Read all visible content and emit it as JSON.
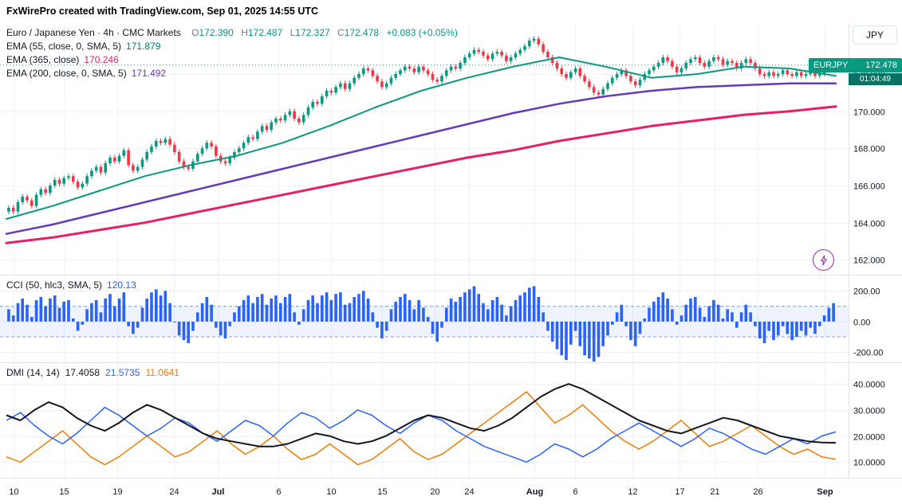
{
  "header": {
    "title": "FxWirePro created with TradingView.com, Sep 01, 2025 14:55 UTC"
  },
  "toolbar": {
    "currency_button": "JPY"
  },
  "main_panel": {
    "legend_title": "Euro / Japanese Yen · 4h · CMC Markets",
    "ohlc": {
      "o_label": "O",
      "o": "172.390",
      "h_label": "H",
      "h": "172.487",
      "l_label": "L",
      "l": "172.327",
      "c_label": "C",
      "c": "172.478",
      "change": "+0.083 (+0.05%)"
    },
    "indicators": [
      {
        "label": "EMA (55, close, 0, SMA, 5)",
        "value": "171.879",
        "color": "#089981"
      },
      {
        "label": "EMA (365, close)",
        "value": "170.246",
        "color": "#e91e63"
      },
      {
        "label": "EMA (200, close, 0, SMA, 5)",
        "value": "171.492",
        "color": "#673ab7"
      }
    ],
    "price_tag": {
      "symbol": "EURJPY",
      "price": "172.478",
      "countdown": "01:04:49",
      "color": "#089981",
      "countdown_color": "#0a7265"
    }
  },
  "cci_panel": {
    "legend": "CCI (50, hlc3, SMA, 5)",
    "value": "120.13",
    "color": "#2962ff"
  },
  "dmi_panel": {
    "legend": "DMI (14, 14)",
    "values": [
      {
        "v": "17.4058",
        "color": "#131722"
      },
      {
        "v": "21.5735",
        "color": "#2962ff"
      },
      {
        "v": "11.0641",
        "color": "#f57c00"
      }
    ]
  },
  "chart_data": {
    "type": "candlestick",
    "title": "Euro / Japanese Yen · 4h · CMC Markets",
    "panels": [
      "price",
      "cci",
      "dmi"
    ],
    "price": {
      "unit": "JPY",
      "current": 172.478,
      "range": [
        161.2,
        174.7
      ],
      "grid": [
        162,
        164,
        166,
        168,
        170,
        172
      ],
      "grid_labels": [
        "162.000",
        "164.000",
        "166.000",
        "168.000",
        "170.000",
        "172.000"
      ],
      "up_color": "#089981",
      "down_color": "#f23645",
      "wick": 0.14,
      "first_open": 164.6,
      "closes": [
        164.8,
        164.6,
        165.1,
        165.4,
        165.2,
        164.9,
        165.5,
        165.8,
        165.6,
        166.0,
        166.3,
        166.1,
        166.4,
        166.5,
        166.2,
        165.9,
        166.1,
        166.5,
        166.8,
        167.0,
        166.7,
        167.2,
        167.5,
        167.3,
        167.6,
        167.9,
        167.1,
        166.8,
        167.0,
        167.4,
        167.8,
        168.1,
        168.4,
        168.3,
        168.5,
        168.2,
        167.8,
        167.3,
        167.0,
        166.9,
        167.3,
        167.7,
        168.0,
        168.3,
        168.1,
        167.6,
        167.3,
        167.2,
        167.5,
        167.8,
        168.0,
        168.3,
        168.6,
        168.5,
        168.9,
        169.2,
        169.0,
        169.4,
        169.6,
        169.5,
        169.8,
        170.0,
        169.6,
        169.4,
        169.8,
        170.2,
        170.5,
        170.4,
        170.8,
        171.1,
        171.0,
        171.3,
        171.5,
        171.2,
        171.5,
        171.8,
        172.0,
        172.3,
        172.2,
        171.9,
        171.6,
        171.3,
        171.5,
        171.8,
        172.0,
        172.2,
        172.4,
        172.3,
        172.1,
        172.4,
        172.2,
        172.0,
        171.7,
        171.6,
        171.9,
        172.2,
        172.4,
        172.3,
        172.6,
        172.9,
        173.1,
        173.3,
        173.2,
        173.0,
        172.8,
        173.1,
        173.2,
        173.0,
        172.7,
        172.9,
        173.1,
        173.3,
        173.5,
        173.8,
        173.9,
        173.6,
        173.2,
        172.9,
        172.6,
        172.3,
        172.0,
        171.8,
        172.1,
        172.3,
        171.9,
        171.6,
        171.3,
        171.0,
        170.9,
        171.2,
        171.5,
        171.8,
        172.0,
        172.2,
        171.9,
        171.6,
        171.4,
        171.7,
        172.0,
        172.2,
        172.4,
        172.6,
        172.9,
        172.7,
        172.4,
        172.1,
        172.3,
        172.6,
        172.8,
        172.9,
        172.6,
        172.4,
        172.7,
        172.9,
        172.8,
        172.5,
        172.7,
        172.6,
        172.3,
        172.6,
        172.8,
        172.6,
        172.3,
        172.0,
        171.9,
        172.1,
        171.9,
        172.0,
        172.2,
        172.0,
        171.9,
        172.1,
        171.9,
        172.0,
        172.1,
        171.9,
        172.0,
        172.2,
        172.3,
        172.478
      ]
    },
    "overlays": {
      "ema55": {
        "color": "#089981",
        "points": [
          164.2,
          164.9,
          165.7,
          166.5,
          167.1,
          167.6,
          168.3,
          169.2,
          170.2,
          171.1,
          171.8,
          172.4,
          172.9,
          172.4,
          171.8,
          172.0,
          172.4,
          172.3,
          171.9
        ]
      },
      "ema200": {
        "color": "#673ab7",
        "points": [
          163.4,
          163.9,
          164.5,
          165.1,
          165.7,
          166.3,
          166.9,
          167.5,
          168.1,
          168.7,
          169.3,
          169.9,
          170.4,
          170.8,
          171.1,
          171.3,
          171.4,
          171.5,
          171.5
        ]
      },
      "ema365": {
        "color": "#e91e63",
        "points": [
          162.9,
          163.2,
          163.6,
          164.0,
          164.5,
          165.0,
          165.5,
          166.0,
          166.5,
          167.0,
          167.5,
          167.9,
          168.4,
          168.8,
          169.2,
          169.5,
          169.8,
          170.0,
          170.25
        ]
      }
    },
    "cci": {
      "color": "#2962ff",
      "range": [
        -265,
        300
      ],
      "band": [
        100,
        -100
      ],
      "grid": [
        200,
        0,
        -200
      ],
      "grid_labels": [
        "200.00",
        "0.00",
        "-200.00"
      ],
      "values": [
        80,
        40,
        120,
        150,
        110,
        30,
        140,
        160,
        100,
        150,
        170,
        90,
        130,
        140,
        20,
        -60,
        -20,
        80,
        120,
        140,
        60,
        150,
        180,
        100,
        150,
        190,
        -30,
        -80,
        -40,
        90,
        150,
        190,
        210,
        170,
        200,
        120,
        0,
        -90,
        -120,
        -140,
        -60,
        60,
        120,
        160,
        110,
        -40,
        -90,
        -110,
        -30,
        60,
        100,
        140,
        170,
        120,
        160,
        180,
        110,
        150,
        170,
        120,
        160,
        180,
        60,
        -20,
        80,
        140,
        170,
        120,
        170,
        190,
        140,
        180,
        190,
        110,
        120,
        160,
        180,
        200,
        150,
        60,
        -40,
        -110,
        -60,
        80,
        130,
        160,
        180,
        140,
        80,
        140,
        90,
        30,
        -80,
        -130,
        -40,
        90,
        150,
        130,
        160,
        190,
        210,
        230,
        180,
        120,
        80,
        140,
        160,
        110,
        40,
        100,
        140,
        170,
        190,
        220,
        230,
        160,
        60,
        -60,
        -130,
        -180,
        -220,
        -250,
        -150,
        -60,
        -160,
        -220,
        -240,
        -260,
        -230,
        -160,
        -90,
        -20,
        60,
        110,
        -30,
        -120,
        -160,
        -80,
        20,
        90,
        130,
        160,
        190,
        150,
        80,
        -20,
        40,
        110,
        150,
        160,
        90,
        30,
        100,
        140,
        110,
        20,
        80,
        60,
        -40,
        60,
        110,
        60,
        -30,
        -110,
        -140,
        -60,
        -120,
        -90,
        -30,
        -80,
        -120,
        -100,
        -60,
        -90,
        -40,
        -80,
        -30,
        40,
        90,
        120.13
      ]
    },
    "dmi": {
      "range": [
        4,
        48
      ],
      "grid": [
        40,
        30,
        20,
        10
      ],
      "grid_labels": [
        "40.0000",
        "30.0000",
        "20.0000",
        "10.0000"
      ],
      "adx": {
        "color": "#131722",
        "values": [
          28,
          26,
          30,
          33,
          31,
          27,
          24,
          22,
          25,
          29,
          32,
          30,
          27,
          24,
          21,
          19,
          18,
          17,
          16,
          16,
          17,
          19,
          21,
          20,
          18,
          17,
          18,
          20,
          23,
          26,
          28,
          27,
          25,
          23,
          22,
          24,
          27,
          31,
          35,
          38,
          40,
          38,
          35,
          32,
          29,
          26,
          24,
          22,
          21,
          23,
          25,
          27,
          26,
          24,
          22,
          20,
          19,
          18,
          17.5,
          17.4
        ]
      },
      "plus_di": {
        "color": "#2962ff",
        "values": [
          26,
          29,
          24,
          20,
          17,
          21,
          26,
          31,
          28,
          24,
          20,
          23,
          27,
          25,
          21,
          18,
          22,
          26,
          24,
          20,
          25,
          29,
          27,
          23,
          26,
          30,
          28,
          24,
          21,
          25,
          28,
          26,
          22,
          19,
          16,
          14,
          12,
          10,
          13,
          17,
          15,
          12,
          15,
          19,
          22,
          25,
          22,
          19,
          16,
          19,
          23,
          21,
          18,
          15,
          13,
          16,
          19,
          17,
          20,
          21.6
        ]
      },
      "minus_di": {
        "color": "#f57c00",
        "values": [
          12,
          10,
          14,
          18,
          22,
          17,
          12,
          9,
          12,
          16,
          20,
          16,
          12,
          14,
          18,
          22,
          17,
          13,
          16,
          20,
          15,
          11,
          13,
          17,
          13,
          9,
          11,
          15,
          19,
          14,
          11,
          13,
          17,
          21,
          25,
          29,
          33,
          37,
          31,
          25,
          28,
          32,
          27,
          22,
          18,
          15,
          18,
          22,
          26,
          21,
          16,
          18,
          21,
          24,
          20,
          16,
          13,
          15,
          12,
          11.1
        ]
      }
    },
    "time_ticks": [
      {
        "label": "10",
        "x": 0.016
      },
      {
        "label": "15",
        "x": 0.075
      },
      {
        "label": "19",
        "x": 0.138
      },
      {
        "label": "24",
        "x": 0.205
      },
      {
        "label": "Jul",
        "x": 0.257
      },
      {
        "label": "6",
        "x": 0.328
      },
      {
        "label": "10",
        "x": 0.39
      },
      {
        "label": "15",
        "x": 0.45
      },
      {
        "label": "20",
        "x": 0.512
      },
      {
        "label": "24",
        "x": 0.553
      },
      {
        "label": "Aug",
        "x": 0.63
      },
      {
        "label": "6",
        "x": 0.678
      },
      {
        "label": "12",
        "x": 0.745
      },
      {
        "label": "17",
        "x": 0.801
      },
      {
        "label": "21",
        "x": 0.842
      },
      {
        "label": "26",
        "x": 0.893
      },
      {
        "label": "Sep",
        "x": 0.972
      }
    ]
  }
}
